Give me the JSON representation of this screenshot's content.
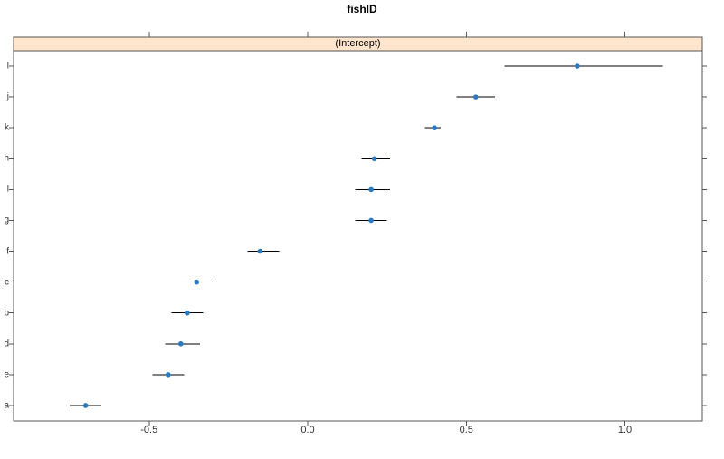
{
  "title": "fishID",
  "chart_data": {
    "type": "scatter",
    "subtype": "dotplot_with_error_bars",
    "title": "fishID",
    "panel_label": "(Intercept)",
    "xlabel": "",
    "ylabel": "",
    "xlim": [
      -0.93,
      1.25
    ],
    "x_ticks": [
      -0.5,
      0,
      0.5,
      1
    ],
    "x_tick_labels": [
      "-0.5",
      "0.0",
      "0.5",
      "1.0"
    ],
    "categories_top_to_bottom": [
      "l",
      "j",
      "k",
      "h",
      "i",
      "g",
      "f",
      "c",
      "b",
      "d",
      "e",
      "a"
    ],
    "points": [
      {
        "label": "l",
        "estimate": 0.85,
        "lo": 0.62,
        "hi": 1.12
      },
      {
        "label": "j",
        "estimate": 0.53,
        "lo": 0.47,
        "hi": 0.59
      },
      {
        "label": "k",
        "estimate": 0.4,
        "lo": 0.37,
        "hi": 0.42
      },
      {
        "label": "h",
        "estimate": 0.21,
        "lo": 0.17,
        "hi": 0.26
      },
      {
        "label": "i",
        "estimate": 0.2,
        "lo": 0.15,
        "hi": 0.26
      },
      {
        "label": "g",
        "estimate": 0.2,
        "lo": 0.15,
        "hi": 0.25
      },
      {
        "label": "f",
        "estimate": -0.15,
        "lo": -0.19,
        "hi": -0.09
      },
      {
        "label": "c",
        "estimate": -0.35,
        "lo": -0.4,
        "hi": -0.3
      },
      {
        "label": "b",
        "estimate": -0.38,
        "lo": -0.43,
        "hi": -0.33
      },
      {
        "label": "d",
        "estimate": -0.4,
        "lo": -0.45,
        "hi": -0.34
      },
      {
        "label": "e",
        "estimate": -0.44,
        "lo": -0.49,
        "hi": -0.39
      },
      {
        "label": "a",
        "estimate": -0.7,
        "lo": -0.75,
        "hi": -0.65
      }
    ],
    "colors": {
      "point": "#2b7abf",
      "interval": "#000000",
      "strip_bg": "#ffe5cc",
      "box_border": "#555555"
    },
    "grid": false,
    "legend": null
  }
}
